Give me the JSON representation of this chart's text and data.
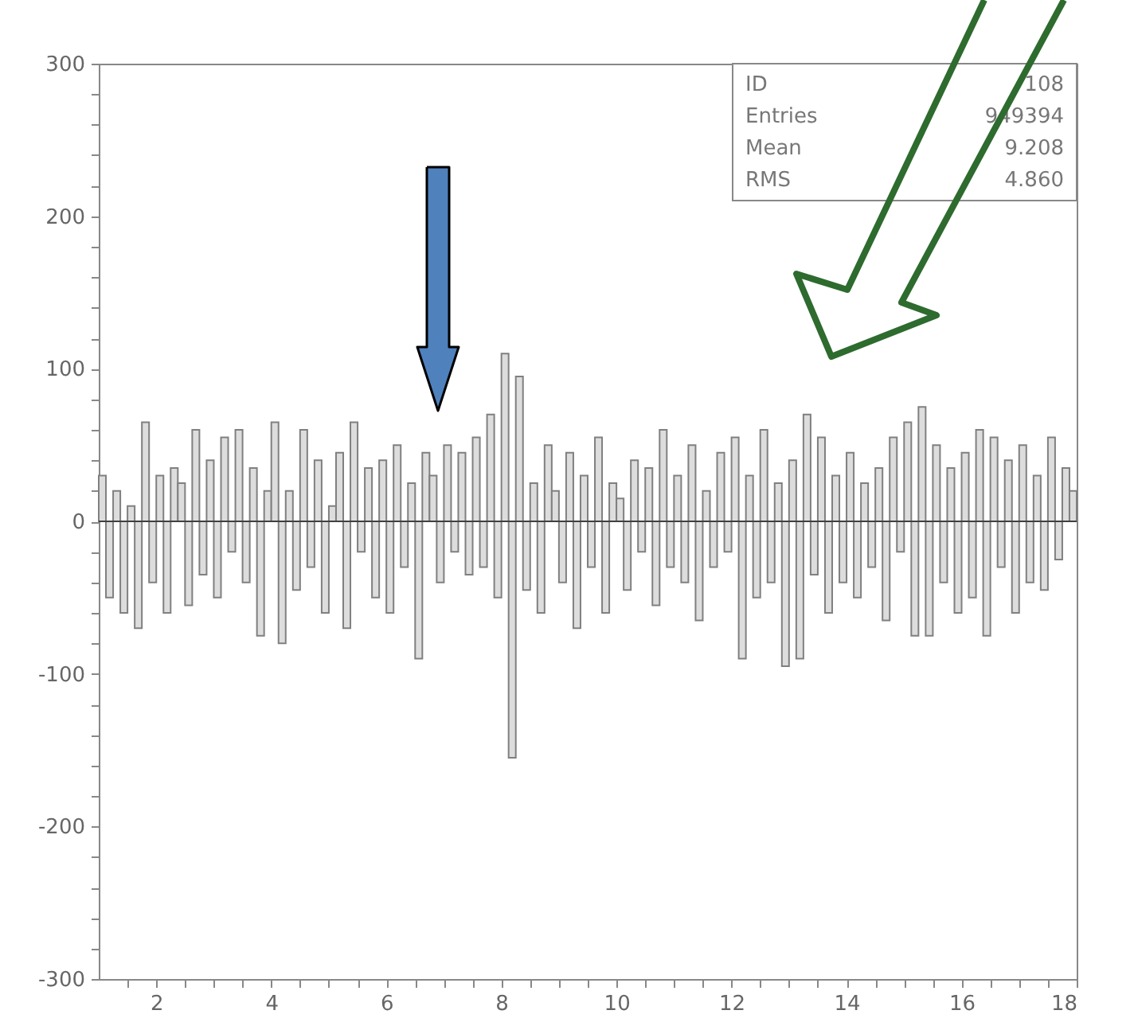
{
  "chart_data": {
    "type": "histogram",
    "bins": [
      1,
      1.125,
      1.25,
      1.375,
      1.5,
      1.625,
      1.75,
      1.875,
      2,
      2.125,
      2.25,
      2.375,
      2.5,
      2.625,
      2.75,
      2.875,
      3,
      3.125,
      3.25,
      3.375,
      3.5,
      3.625,
      3.75,
      3.875,
      4,
      4.125,
      4.25,
      4.375,
      4.5,
      4.625,
      4.75,
      4.875,
      5,
      5.125,
      5.25,
      5.375,
      5.5,
      5.625,
      5.75,
      5.875,
      6,
      6.125,
      6.25,
      6.375,
      6.5,
      6.625,
      6.75,
      6.875,
      7,
      7.125,
      7.25,
      7.375,
      7.5,
      7.625,
      7.75,
      7.875,
      8,
      8.125,
      8.25,
      8.375,
      8.5,
      8.625,
      8.75,
      8.875,
      9,
      9.125,
      9.25,
      9.375,
      9.5,
      9.625,
      9.75,
      9.875,
      10,
      10.125,
      10.25,
      10.375,
      10.5,
      10.625,
      10.75,
      10.875,
      11,
      11.125,
      11.25,
      11.375,
      11.5,
      11.625,
      11.75,
      11.875,
      12,
      12.125,
      12.25,
      12.375,
      12.5,
      12.625,
      12.75,
      12.875,
      13,
      13.125,
      13.25,
      13.375,
      13.5,
      13.625,
      13.75,
      13.875,
      14,
      14.125,
      14.25,
      14.375,
      14.5,
      14.625,
      14.75,
      14.875,
      15,
      15.125,
      15.25,
      15.375,
      15.5,
      15.625,
      15.75,
      15.875,
      16,
      16.125,
      16.25,
      16.375,
      16.5,
      16.625,
      16.75,
      16.875,
      17,
      17.125,
      17.25,
      17.375,
      17.5,
      17.625,
      17.75,
      17.875,
      18
    ],
    "values": [
      30,
      -50,
      20,
      -60,
      10,
      -70,
      65,
      -40,
      30,
      -60,
      35,
      25,
      -55,
      60,
      -35,
      40,
      -50,
      55,
      -20,
      60,
      -40,
      35,
      -75,
      20,
      65,
      -80,
      20,
      -45,
      60,
      -30,
      40,
      -60,
      10,
      45,
      -70,
      65,
      -20,
      35,
      -50,
      40,
      -60,
      50,
      -30,
      25,
      -90,
      45,
      30,
      -40,
      50,
      -20,
      45,
      -35,
      55,
      -30,
      70,
      -50,
      110,
      -155,
      95,
      -45,
      25,
      -60,
      50,
      20,
      -40,
      45,
      -70,
      30,
      -30,
      55,
      -60,
      25,
      15,
      -45,
      40,
      -20,
      35,
      -55,
      60,
      -30,
      30,
      -40,
      50,
      -65,
      20,
      -30,
      45,
      -20,
      55,
      -90,
      30,
      -50,
      60,
      -40,
      25,
      -95,
      40,
      -90,
      70,
      -35,
      55,
      -60,
      30,
      -40,
      45,
      -50,
      25,
      -30,
      35,
      -65,
      55,
      -20,
      65,
      -75,
      75,
      -75,
      50,
      -40,
      35,
      -60,
      45,
      -50,
      60,
      -75,
      55,
      -30,
      40,
      -60,
      50,
      -40,
      30,
      -45,
      55,
      -25,
      35,
      20
    ],
    "color": "#808080",
    "xlim": [
      1,
      18
    ],
    "xticks": [
      {
        "value": 1.5,
        "label": null
      },
      2,
      {
        "value": 2.5,
        "label": null
      },
      {
        "value": 3,
        "label": null
      },
      {
        "value": 3.5,
        "label": null
      },
      4,
      {
        "value": 4.5,
        "label": null
      },
      {
        "value": 5,
        "label": null
      },
      {
        "value": 5.5,
        "label": null
      },
      6,
      {
        "value": 6.5,
        "label": null
      },
      {
        "value": 7,
        "label": null
      },
      {
        "value": 7.5,
        "label": null
      },
      8,
      {
        "value": 8.5,
        "label": null
      },
      {
        "value": 9,
        "label": null
      },
      {
        "value": 9.5,
        "label": null
      },
      10,
      {
        "value": 10.5,
        "label": null
      },
      {
        "value": 11,
        "label": null
      },
      {
        "value": 11.5,
        "label": null
      },
      12,
      {
        "value": 12.5,
        "label": null
      },
      {
        "value": 13,
        "label": null
      },
      {
        "value": 13.5,
        "label": null
      },
      14,
      {
        "value": 14.5,
        "label": null
      },
      {
        "value": 15,
        "label": null
      },
      {
        "value": 15.5,
        "label": null
      },
      16,
      {
        "value": 16.5,
        "label": null
      },
      {
        "value": 17,
        "label": null
      },
      {
        "value": 17.5,
        "label": null
      },
      18
    ],
    "ylim": [
      -300,
      300
    ],
    "yticks": [
      -300,
      {
        "value": -280,
        "label": null
      },
      {
        "value": -260,
        "label": null
      },
      {
        "value": -240,
        "label": null
      },
      {
        "value": -220,
        "label": null
      },
      -200,
      {
        "value": -180,
        "label": null
      },
      {
        "value": -160,
        "label": null
      },
      {
        "value": -140,
        "label": null
      },
      {
        "value": -120,
        "label": null
      },
      -100,
      {
        "value": -80,
        "label": null
      },
      {
        "value": -60,
        "label": null
      },
      {
        "value": -40,
        "label": null
      },
      {
        "value": -20,
        "label": null
      },
      0,
      {
        "value": 20,
        "label": null
      },
      {
        "value": 40,
        "label": null
      },
      {
        "value": 60,
        "label": null
      },
      {
        "value": 80,
        "label": null
      },
      100,
      {
        "value": 120,
        "label": null
      },
      {
        "value": 140,
        "label": null
      },
      {
        "value": 160,
        "label": null
      },
      {
        "value": 180,
        "label": null
      },
      200,
      {
        "value": 220,
        "label": null
      },
      {
        "value": 240,
        "label": null
      },
      {
        "value": 260,
        "label": null
      },
      {
        "value": 280,
        "label": null
      },
      300
    ],
    "ref_lines": [
      {
        "axis": "y",
        "value": 0,
        "color": "#404040"
      }
    ],
    "annotations": [
      "ID",
      "108",
      "Entries",
      "949394",
      "Mean",
      "9.208",
      "RMS",
      "4.860"
    ],
    "grid": false
  }
}
